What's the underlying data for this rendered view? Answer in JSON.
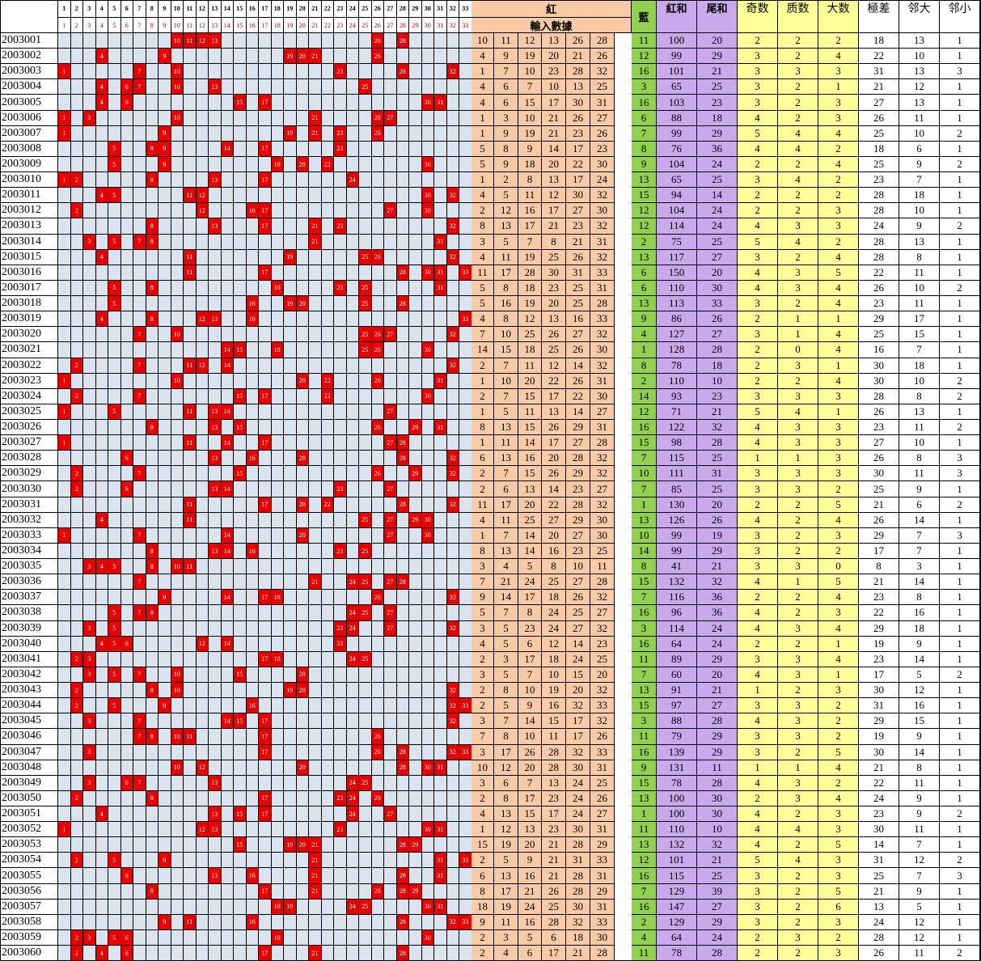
{
  "header": {
    "red": "紅",
    "input": "輸入數據",
    "blue": "藍",
    "red_sum": "紅和",
    "tail_sum": "尾和",
    "odd": "奇数",
    "prime": "质数",
    "big": "大数",
    "range": "極差",
    "adj_big": "邻大",
    "adj_small": "邻小"
  },
  "numbers": [
    "1",
    "2",
    "3",
    "4",
    "5",
    "6",
    "7",
    "8",
    "9",
    "10",
    "11",
    "12",
    "13",
    "14",
    "15",
    "16",
    "17",
    "18",
    "19",
    "20",
    "21",
    "22",
    "23",
    "24",
    "25",
    "26",
    "27",
    "28",
    "29",
    "30",
    "31",
    "32",
    "33"
  ],
  "rows": [
    {
      "id": "2003001",
      "reds": [
        10,
        11,
        12,
        13,
        26,
        28
      ],
      "blue": 11,
      "red_sum": 100,
      "tail_sum": 20,
      "odd": 2,
      "prime": 2,
      "big": 2,
      "range": 18,
      "adj_big": 13,
      "adj_small": 1
    },
    {
      "id": "2003002",
      "reds": [
        4,
        9,
        19,
        20,
        21,
        26
      ],
      "blue": 12,
      "red_sum": 99,
      "tail_sum": 29,
      "odd": 3,
      "prime": 2,
      "big": 4,
      "range": 22,
      "adj_big": 10,
      "adj_small": 1
    },
    {
      "id": "2003003",
      "reds": [
        1,
        7,
        10,
        23,
        28,
        32
      ],
      "blue": 16,
      "red_sum": 101,
      "tail_sum": 21,
      "odd": 3,
      "prime": 3,
      "big": 3,
      "range": 31,
      "adj_big": 13,
      "adj_small": 3
    },
    {
      "id": "2003004",
      "reds": [
        4,
        6,
        7,
        10,
        13,
        25
      ],
      "blue": 3,
      "red_sum": 65,
      "tail_sum": 25,
      "odd": 3,
      "prime": 2,
      "big": 1,
      "range": 21,
      "adj_big": 12,
      "adj_small": 1
    },
    {
      "id": "2003005",
      "reds": [
        4,
        6,
        15,
        17,
        30,
        31
      ],
      "blue": 16,
      "red_sum": 103,
      "tail_sum": 23,
      "odd": 3,
      "prime": 2,
      "big": 3,
      "range": 27,
      "adj_big": 13,
      "adj_small": 1
    },
    {
      "id": "2003006",
      "reds": [
        1,
        3,
        10,
        21,
        26,
        27
      ],
      "blue": 6,
      "red_sum": 88,
      "tail_sum": 18,
      "odd": 4,
      "prime": 2,
      "big": 3,
      "range": 26,
      "adj_big": 11,
      "adj_small": 1
    },
    {
      "id": "2003007",
      "reds": [
        1,
        9,
        19,
        21,
        23,
        26
      ],
      "blue": 7,
      "red_sum": 99,
      "tail_sum": 29,
      "odd": 5,
      "prime": 4,
      "big": 4,
      "range": 25,
      "adj_big": 10,
      "adj_small": 2
    },
    {
      "id": "2003008",
      "reds": [
        5,
        8,
        9,
        14,
        17,
        23
      ],
      "blue": 8,
      "red_sum": 76,
      "tail_sum": 36,
      "odd": 4,
      "prime": 4,
      "big": 2,
      "range": 18,
      "adj_big": 6,
      "adj_small": 1
    },
    {
      "id": "2003009",
      "reds": [
        5,
        9,
        18,
        20,
        22,
        30
      ],
      "blue": 9,
      "red_sum": 104,
      "tail_sum": 24,
      "odd": 2,
      "prime": 2,
      "big": 4,
      "range": 25,
      "adj_big": 9,
      "adj_small": 2
    },
    {
      "id": "2003010",
      "reds": [
        1,
        2,
        8,
        13,
        17,
        24
      ],
      "blue": 13,
      "red_sum": 65,
      "tail_sum": 25,
      "odd": 3,
      "prime": 4,
      "big": 2,
      "range": 23,
      "adj_big": 7,
      "adj_small": 1
    },
    {
      "id": "2003011",
      "reds": [
        4,
        5,
        11,
        12,
        30,
        32
      ],
      "blue": 15,
      "red_sum": 94,
      "tail_sum": 14,
      "odd": 2,
      "prime": 2,
      "big": 2,
      "range": 28,
      "adj_big": 18,
      "adj_small": 1
    },
    {
      "id": "2003012",
      "reds": [
        2,
        12,
        16,
        17,
        27,
        30
      ],
      "blue": 12,
      "red_sum": 104,
      "tail_sum": 24,
      "odd": 2,
      "prime": 2,
      "big": 3,
      "range": 28,
      "adj_big": 10,
      "adj_small": 1
    },
    {
      "id": "2003013",
      "reds": [
        8,
        13,
        17,
        21,
        23,
        32
      ],
      "blue": 12,
      "red_sum": 114,
      "tail_sum": 24,
      "odd": 4,
      "prime": 3,
      "big": 3,
      "range": 24,
      "adj_big": 9,
      "adj_small": 2
    },
    {
      "id": "2003014",
      "reds": [
        3,
        5,
        7,
        8,
        21,
        31
      ],
      "blue": 2,
      "red_sum": 75,
      "tail_sum": 25,
      "odd": 5,
      "prime": 4,
      "big": 2,
      "range": 28,
      "adj_big": 13,
      "adj_small": 1
    },
    {
      "id": "2003015",
      "reds": [
        4,
        11,
        19,
        25,
        26,
        32
      ],
      "blue": 13,
      "red_sum": 117,
      "tail_sum": 27,
      "odd": 3,
      "prime": 2,
      "big": 4,
      "range": 28,
      "adj_big": 8,
      "adj_small": 1
    },
    {
      "id": "2003016",
      "reds": [
        11,
        17,
        28,
        30,
        31,
        33
      ],
      "blue": 6,
      "red_sum": 150,
      "tail_sum": 20,
      "odd": 4,
      "prime": 3,
      "big": 5,
      "range": 22,
      "adj_big": 11,
      "adj_small": 1
    },
    {
      "id": "2003017",
      "reds": [
        5,
        8,
        18,
        23,
        25,
        31
      ],
      "blue": 6,
      "red_sum": 110,
      "tail_sum": 30,
      "odd": 4,
      "prime": 3,
      "big": 4,
      "range": 26,
      "adj_big": 10,
      "adj_small": 2
    },
    {
      "id": "2003018",
      "reds": [
        5,
        16,
        19,
        20,
        25,
        28
      ],
      "blue": 13,
      "red_sum": 113,
      "tail_sum": 33,
      "odd": 3,
      "prime": 2,
      "big": 4,
      "range": 23,
      "adj_big": 11,
      "adj_small": 1
    },
    {
      "id": "2003019",
      "reds": [
        4,
        8,
        12,
        13,
        16,
        33
      ],
      "blue": 9,
      "red_sum": 86,
      "tail_sum": 26,
      "odd": 2,
      "prime": 1,
      "big": 1,
      "range": 29,
      "adj_big": 17,
      "adj_small": 1
    },
    {
      "id": "2003020",
      "reds": [
        7,
        10,
        25,
        26,
        27,
        32
      ],
      "blue": 4,
      "red_sum": 127,
      "tail_sum": 27,
      "odd": 3,
      "prime": 1,
      "big": 4,
      "range": 25,
      "adj_big": 15,
      "adj_small": 1
    },
    {
      "id": "2003021",
      "reds": [
        14,
        15,
        18,
        25,
        26,
        30
      ],
      "blue": 1,
      "red_sum": 128,
      "tail_sum": 28,
      "odd": 2,
      "prime": 0,
      "big": 4,
      "range": 16,
      "adj_big": 7,
      "adj_small": 1
    },
    {
      "id": "2003022",
      "reds": [
        2,
        7,
        11,
        12,
        14,
        32
      ],
      "blue": 8,
      "red_sum": 78,
      "tail_sum": 18,
      "odd": 2,
      "prime": 3,
      "big": 1,
      "range": 30,
      "adj_big": 18,
      "adj_small": 1
    },
    {
      "id": "2003023",
      "reds": [
        1,
        10,
        20,
        22,
        26,
        31
      ],
      "blue": 2,
      "red_sum": 110,
      "tail_sum": 10,
      "odd": 2,
      "prime": 2,
      "big": 4,
      "range": 30,
      "adj_big": 10,
      "adj_small": 2
    },
    {
      "id": "2003024",
      "reds": [
        2,
        7,
        15,
        17,
        22,
        30
      ],
      "blue": 14,
      "red_sum": 93,
      "tail_sum": 23,
      "odd": 3,
      "prime": 3,
      "big": 3,
      "range": 28,
      "adj_big": 8,
      "adj_small": 2
    },
    {
      "id": "2003025",
      "reds": [
        1,
        5,
        11,
        13,
        14,
        27
      ],
      "blue": 12,
      "red_sum": 71,
      "tail_sum": 21,
      "odd": 5,
      "prime": 4,
      "big": 1,
      "range": 26,
      "adj_big": 13,
      "adj_small": 1
    },
    {
      "id": "2003026",
      "reds": [
        8,
        13,
        15,
        26,
        29,
        31
      ],
      "blue": 16,
      "red_sum": 122,
      "tail_sum": 32,
      "odd": 4,
      "prime": 3,
      "big": 3,
      "range": 23,
      "adj_big": 11,
      "adj_small": 2
    },
    {
      "id": "2003027",
      "reds": [
        1,
        11,
        14,
        17,
        27,
        28
      ],
      "blue": 15,
      "red_sum": 98,
      "tail_sum": 28,
      "odd": 4,
      "prime": 3,
      "big": 3,
      "range": 27,
      "adj_big": 10,
      "adj_small": 1
    },
    {
      "id": "2003028",
      "reds": [
        6,
        13,
        16,
        20,
        28,
        32
      ],
      "blue": 7,
      "red_sum": 115,
      "tail_sum": 25,
      "odd": 1,
      "prime": 1,
      "big": 3,
      "range": 26,
      "adj_big": 8,
      "adj_small": 3
    },
    {
      "id": "2003029",
      "reds": [
        2,
        7,
        15,
        26,
        29,
        32
      ],
      "blue": 10,
      "red_sum": 111,
      "tail_sum": 31,
      "odd": 3,
      "prime": 3,
      "big": 3,
      "range": 30,
      "adj_big": 11,
      "adj_small": 3
    },
    {
      "id": "2003030",
      "reds": [
        2,
        6,
        13,
        14,
        23,
        27
      ],
      "blue": 7,
      "red_sum": 85,
      "tail_sum": 25,
      "odd": 3,
      "prime": 3,
      "big": 2,
      "range": 25,
      "adj_big": 9,
      "adj_small": 1
    },
    {
      "id": "2003031",
      "reds": [
        11,
        17,
        20,
        22,
        28,
        32
      ],
      "blue": 1,
      "red_sum": 130,
      "tail_sum": 20,
      "odd": 2,
      "prime": 2,
      "big": 5,
      "range": 21,
      "adj_big": 6,
      "adj_small": 2
    },
    {
      "id": "2003032",
      "reds": [
        4,
        11,
        25,
        27,
        29,
        30
      ],
      "blue": 13,
      "red_sum": 126,
      "tail_sum": 26,
      "odd": 4,
      "prime": 2,
      "big": 4,
      "range": 26,
      "adj_big": 14,
      "adj_small": 1
    },
    {
      "id": "2003033",
      "reds": [
        1,
        7,
        14,
        20,
        27,
        30
      ],
      "blue": 10,
      "red_sum": 99,
      "tail_sum": 19,
      "odd": 3,
      "prime": 2,
      "big": 3,
      "range": 29,
      "adj_big": 7,
      "adj_small": 3
    },
    {
      "id": "2003034",
      "reds": [
        8,
        13,
        14,
        16,
        23,
        25
      ],
      "blue": 14,
      "red_sum": 99,
      "tail_sum": 29,
      "odd": 3,
      "prime": 2,
      "big": 2,
      "range": 17,
      "adj_big": 7,
      "adj_small": 1
    },
    {
      "id": "2003035",
      "reds": [
        3,
        4,
        5,
        8,
        10,
        11
      ],
      "blue": 8,
      "red_sum": 41,
      "tail_sum": 21,
      "odd": 3,
      "prime": 3,
      "big": 0,
      "range": 8,
      "adj_big": 3,
      "adj_small": 1
    },
    {
      "id": "2003036",
      "reds": [
        7,
        21,
        24,
        25,
        27,
        28
      ],
      "blue": 15,
      "red_sum": 132,
      "tail_sum": 32,
      "odd": 4,
      "prime": 1,
      "big": 5,
      "range": 21,
      "adj_big": 14,
      "adj_small": 1
    },
    {
      "id": "2003037",
      "reds": [
        9,
        14,
        17,
        18,
        26,
        32
      ],
      "blue": 7,
      "red_sum": 116,
      "tail_sum": 36,
      "odd": 2,
      "prime": 2,
      "big": 4,
      "range": 23,
      "adj_big": 8,
      "adj_small": 1
    },
    {
      "id": "2003038",
      "reds": [
        5,
        7,
        8,
        24,
        25,
        27
      ],
      "blue": 16,
      "red_sum": 96,
      "tail_sum": 36,
      "odd": 4,
      "prime": 2,
      "big": 3,
      "range": 22,
      "adj_big": 16,
      "adj_small": 1
    },
    {
      "id": "2003039",
      "reds": [
        3,
        5,
        23,
        24,
        27,
        32
      ],
      "blue": 3,
      "red_sum": 114,
      "tail_sum": 24,
      "odd": 4,
      "prime": 3,
      "big": 4,
      "range": 29,
      "adj_big": 18,
      "adj_small": 1
    },
    {
      "id": "2003040",
      "reds": [
        4,
        5,
        6,
        12,
        14,
        23
      ],
      "blue": 16,
      "red_sum": 64,
      "tail_sum": 24,
      "odd": 2,
      "prime": 2,
      "big": 1,
      "range": 19,
      "adj_big": 9,
      "adj_small": 1
    },
    {
      "id": "2003041",
      "reds": [
        2,
        3,
        17,
        18,
        24,
        25
      ],
      "blue": 11,
      "red_sum": 89,
      "tail_sum": 29,
      "odd": 3,
      "prime": 3,
      "big": 4,
      "range": 23,
      "adj_big": 14,
      "adj_small": 1
    },
    {
      "id": "2003042",
      "reds": [
        3,
        5,
        7,
        10,
        15,
        20
      ],
      "blue": 7,
      "red_sum": 60,
      "tail_sum": 20,
      "odd": 4,
      "prime": 3,
      "big": 1,
      "range": 17,
      "adj_big": 5,
      "adj_small": 2
    },
    {
      "id": "2003043",
      "reds": [
        2,
        8,
        10,
        19,
        20,
        32
      ],
      "blue": 13,
      "red_sum": 91,
      "tail_sum": 21,
      "odd": 1,
      "prime": 2,
      "big": 3,
      "range": 30,
      "adj_big": 12,
      "adj_small": 1
    },
    {
      "id": "2003044",
      "reds": [
        2,
        5,
        9,
        16,
        32,
        33
      ],
      "blue": 15,
      "red_sum": 97,
      "tail_sum": 27,
      "odd": 3,
      "prime": 3,
      "big": 2,
      "range": 31,
      "adj_big": 16,
      "adj_small": 1
    },
    {
      "id": "2003045",
      "reds": [
        3,
        7,
        14,
        15,
        17,
        32
      ],
      "blue": 3,
      "red_sum": 88,
      "tail_sum": 28,
      "odd": 4,
      "prime": 3,
      "big": 2,
      "range": 29,
      "adj_big": 15,
      "adj_small": 1
    },
    {
      "id": "2003046",
      "reds": [
        7,
        8,
        10,
        11,
        17,
        26
      ],
      "blue": 11,
      "red_sum": 79,
      "tail_sum": 29,
      "odd": 3,
      "prime": 3,
      "big": 2,
      "range": 19,
      "adj_big": 9,
      "adj_small": 1
    },
    {
      "id": "2003047",
      "reds": [
        3,
        17,
        26,
        28,
        32,
        33
      ],
      "blue": 16,
      "red_sum": 139,
      "tail_sum": 29,
      "odd": 3,
      "prime": 2,
      "big": 5,
      "range": 30,
      "adj_big": 14,
      "adj_small": 1
    },
    {
      "id": "2003048",
      "reds": [
        10,
        12,
        20,
        28,
        30,
        31
      ],
      "blue": 9,
      "red_sum": 131,
      "tail_sum": 11,
      "odd": 1,
      "prime": 1,
      "big": 4,
      "range": 21,
      "adj_big": 8,
      "adj_small": 1
    },
    {
      "id": "2003049",
      "reds": [
        3,
        6,
        7,
        13,
        24,
        25
      ],
      "blue": 15,
      "red_sum": 78,
      "tail_sum": 28,
      "odd": 4,
      "prime": 3,
      "big": 2,
      "range": 22,
      "adj_big": 11,
      "adj_small": 1
    },
    {
      "id": "2003050",
      "reds": [
        2,
        8,
        17,
        23,
        24,
        26
      ],
      "blue": 13,
      "red_sum": 100,
      "tail_sum": 30,
      "odd": 2,
      "prime": 3,
      "big": 4,
      "range": 24,
      "adj_big": 9,
      "adj_small": 1
    },
    {
      "id": "2003051",
      "reds": [
        4,
        13,
        15,
        17,
        24,
        27
      ],
      "blue": 1,
      "red_sum": 100,
      "tail_sum": 30,
      "odd": 4,
      "prime": 2,
      "big": 3,
      "range": 23,
      "adj_big": 9,
      "adj_small": 2
    },
    {
      "id": "2003052",
      "reds": [
        1,
        12,
        13,
        23,
        30,
        31
      ],
      "blue": 11,
      "red_sum": 110,
      "tail_sum": 10,
      "odd": 4,
      "prime": 4,
      "big": 3,
      "range": 30,
      "adj_big": 11,
      "adj_small": 1
    },
    {
      "id": "2003053",
      "reds": [
        15,
        19,
        20,
        21,
        28,
        29
      ],
      "blue": 13,
      "red_sum": 132,
      "tail_sum": 32,
      "odd": 4,
      "prime": 2,
      "big": 5,
      "range": 14,
      "adj_big": 7,
      "adj_small": 1
    },
    {
      "id": "2003054",
      "reds": [
        2,
        5,
        9,
        21,
        31,
        33
      ],
      "blue": 12,
      "red_sum": 101,
      "tail_sum": 21,
      "odd": 5,
      "prime": 4,
      "big": 3,
      "range": 31,
      "adj_big": 12,
      "adj_small": 2
    },
    {
      "id": "2003055",
      "reds": [
        6,
        13,
        16,
        21,
        28,
        31
      ],
      "blue": 16,
      "red_sum": 115,
      "tail_sum": 25,
      "odd": 3,
      "prime": 2,
      "big": 3,
      "range": 25,
      "adj_big": 7,
      "adj_small": 3
    },
    {
      "id": "2003056",
      "reds": [
        8,
        17,
        21,
        26,
        28,
        29
      ],
      "blue": 7,
      "red_sum": 129,
      "tail_sum": 39,
      "odd": 3,
      "prime": 2,
      "big": 5,
      "range": 21,
      "adj_big": 9,
      "adj_small": 1
    },
    {
      "id": "2003057",
      "reds": [
        18,
        19,
        24,
        25,
        30,
        31
      ],
      "blue": 16,
      "red_sum": 147,
      "tail_sum": 27,
      "odd": 3,
      "prime": 2,
      "big": 6,
      "range": 13,
      "adj_big": 5,
      "adj_small": 1
    },
    {
      "id": "2003058",
      "reds": [
        9,
        11,
        16,
        28,
        32,
        33
      ],
      "blue": 2,
      "red_sum": 129,
      "tail_sum": 29,
      "odd": 3,
      "prime": 2,
      "big": 3,
      "range": 24,
      "adj_big": 12,
      "adj_small": 1
    },
    {
      "id": "2003059",
      "reds": [
        2,
        3,
        5,
        6,
        18,
        30
      ],
      "blue": 4,
      "red_sum": 64,
      "tail_sum": 24,
      "odd": 2,
      "prime": 3,
      "big": 2,
      "range": 28,
      "adj_big": 12,
      "adj_small": 1
    },
    {
      "id": "2003060",
      "reds": [
        2,
        4,
        6,
        17,
        21,
        28
      ],
      "blue": 11,
      "red_sum": 78,
      "tail_sum": 28,
      "odd": 2,
      "prime": 2,
      "big": 3,
      "range": 26,
      "adj_big": 11,
      "adj_small": 2
    }
  ],
  "colors": {
    "grid": "#dbe3ef",
    "hit": "#e60000",
    "red_input": "#f8cba6",
    "blue_input": "#92d050",
    "sums": "#c9a8ec",
    "stats": "#ffff99"
  }
}
